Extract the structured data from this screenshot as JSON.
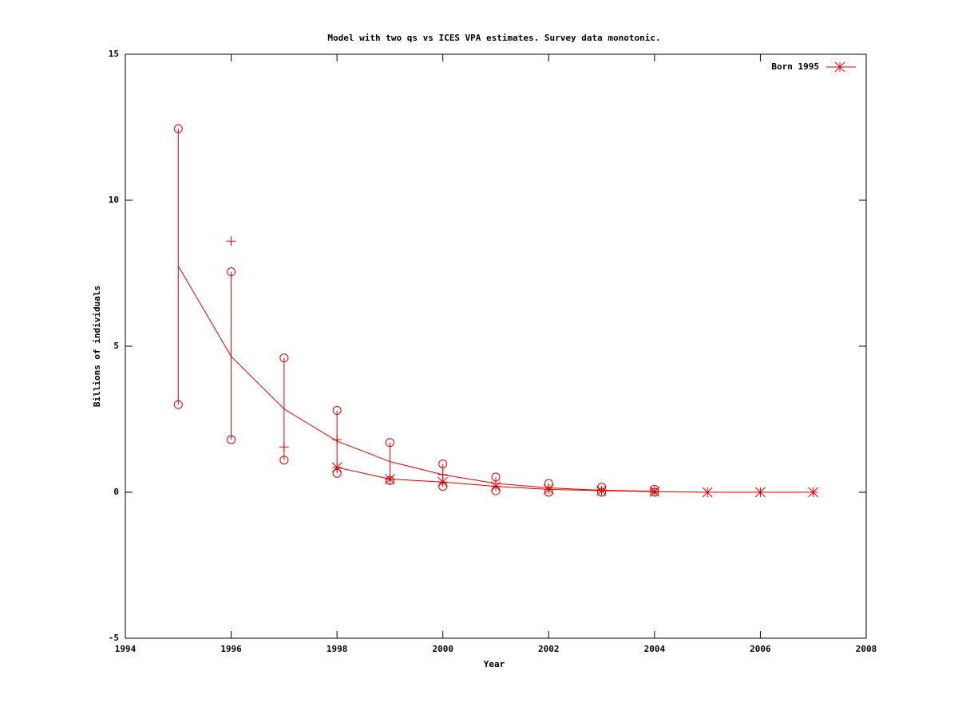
{
  "chart_data": {
    "type": "line",
    "title": "Model with two qs vs ICES VPA estimates. Survey data monotonic.",
    "x_label": "Year",
    "y_label": "Billions of individuals",
    "xlim": [
      1994,
      2008
    ],
    "xticks": [
      1994,
      1996,
      1998,
      2000,
      2002,
      2004,
      2006,
      2008
    ],
    "ylim": [
      -5,
      15
    ],
    "yticks": [
      -5,
      0,
      5,
      10,
      15
    ],
    "grid": false,
    "legend": "top-right",
    "series": [
      {
        "style": "line",
        "color": "#dd0000",
        "x": [
          1995,
          1996,
          1997,
          1998,
          1999,
          2000,
          2001,
          2002,
          2003,
          2004
        ],
        "values": [
          7.75,
          4.65,
          2.85,
          1.75,
          1.05,
          0.6,
          0.3,
          0.15,
          0.07,
          0.03
        ]
      },
      {
        "style": "errorbars",
        "marker": "circle",
        "color": "#dd0000",
        "x": [
          1995,
          1996,
          1997,
          1998,
          1999,
          2000,
          2001,
          2002,
          2003,
          2004
        ],
        "low": [
          3.0,
          1.8,
          1.1,
          0.65,
          0.4,
          0.2,
          0.05,
          0.0,
          0.0,
          0.0
        ],
        "high": [
          12.45,
          7.55,
          4.6,
          2.8,
          1.7,
          0.97,
          0.52,
          0.3,
          0.17,
          0.1
        ]
      },
      {
        "style": "points",
        "marker": "plus",
        "color": "#dd0000",
        "x": [
          1996,
          1997,
          1998,
          2000
        ],
        "values": [
          8.6,
          1.55,
          1.8,
          0.6
        ]
      },
      {
        "name": "Born 1995",
        "style": "linespoints",
        "marker": "star",
        "color": "#dd0000",
        "x": [
          1998,
          1999,
          2000,
          2001,
          2002,
          2003,
          2004,
          2005,
          2006,
          2007
        ],
        "values": [
          0.85,
          0.45,
          0.35,
          0.2,
          0.1,
          0.05,
          0.02,
          0.0,
          0.0,
          0.0
        ]
      }
    ]
  }
}
